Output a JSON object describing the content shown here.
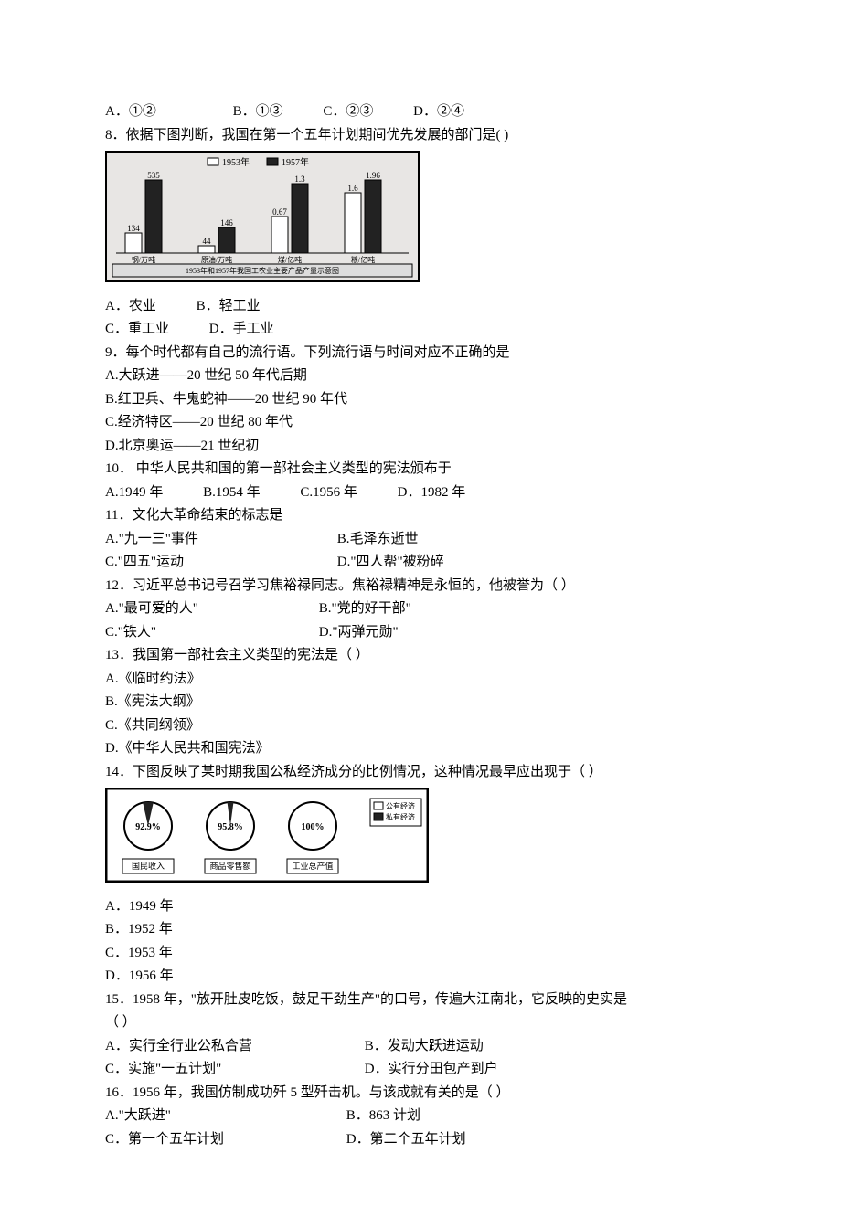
{
  "q7_opts": {
    "a": "A．①②",
    "b": "B．①③",
    "c": "C．②③",
    "d": "D．②④"
  },
  "q8": {
    "stem": "8．依据下图判断，我国在第一个五年计划期间优先发展的部门是(  )",
    "chart": {
      "legend_1953": "1953年",
      "legend_1957": "1957年",
      "bar_pairs": [
        {
          "v1953": 134,
          "v1957": 535,
          "label": "钢/万吨"
        },
        {
          "v1953": 44,
          "v1957": 146,
          "label": "原油/万吨"
        },
        {
          "v1953": 0.67,
          "v1957": 1.3,
          "label": "煤/亿吨"
        },
        {
          "v1953": 1.6,
          "v1957": 1.96,
          "label": "粮/亿吨"
        }
      ],
      "caption": "1953年和1957年我国工农业主要产品产量示意图",
      "color_1953": "#ffffff",
      "color_1957": "#222222",
      "border": "#000000",
      "bg": "#e8e6e4"
    },
    "opt_a": "A．农业",
    "opt_b": "B．轻工业",
    "opt_c": "C．重工业",
    "opt_d": "D．手工业"
  },
  "q9": {
    "stem": "9．每个时代都有自己的流行语。下列流行语与时间对应不正确的是",
    "a": "A.大跃进——20 世纪 50 年代后期",
    "b": "B.红卫兵、牛鬼蛇神——20 世纪 90 年代",
    "c": "C.经济特区——20 世纪 80 年代",
    "d": "D.北京奥运——21 世纪初"
  },
  "q10": {
    "stem": "10．  中华人民共和国的第一部社会主义类型的宪法颁布于",
    "a": "A.1949 年",
    "b": "B.1954 年",
    "c": "C.1956 年",
    "d": "D．1982 年"
  },
  "q11": {
    "stem": "11．文化大革命结束的标志是",
    "a": "A.\"九一三\"事件",
    "b": "B.毛泽东逝世",
    "c": "C.\"四五\"运动",
    "d": "D.\"四人帮\"被粉碎"
  },
  "q12": {
    "stem": "12．习近平总书记号召学习焦裕禄同志。焦裕禄精神是永恒的，他被誉为（     ）",
    "a": "A.\"最可爱的人\"",
    "b": "B.\"党的好干部\"",
    "c": "C.\"铁人\"",
    "d": "D.\"两弹元勋\""
  },
  "q13": {
    "stem": "13．我国第一部社会主义类型的宪法是（     ）",
    "a": "A.《临时约法》",
    "b": "B.《宪法大纲》",
    "c": "C.《共同纲领》",
    "d": "D.《中华人民共和国宪法》"
  },
  "q14": {
    "stem": "14．下图反映了某时期我国公私经济成分的比例情况，这种情况最早应出现于（     ）",
    "chart": {
      "pies": [
        {
          "pct": "92.9%",
          "label": "国民收入",
          "priv": 7.1
        },
        {
          "pct": "95.8%",
          "label": "商品零售额",
          "priv": 4.2
        },
        {
          "pct": "100%",
          "label": "工业总产值",
          "priv": 0
        }
      ],
      "legend_pub": "公有经济",
      "legend_priv": "私有经济",
      "color_pub": "#ffffff",
      "color_priv": "#222222",
      "border": "#000000"
    },
    "a": "A．1949 年",
    "b": "B．1952 年",
    "c": "C．1953 年",
    "d": "D．1956 年"
  },
  "q15": {
    "stem": "15．1958 年，\"放开肚皮吃饭，鼓足干劲生产\"的口号，传遍大江南北，它反映的史实是",
    "paren": "（     ）",
    "a": "A．实行全行业公私合营",
    "b": "B．发动大跃进运动",
    "c": "C．实施\"一五计划\"",
    "d": "D．实行分田包产到户"
  },
  "q16": {
    "stem": "16．1956 年，我国仿制成功歼 5 型歼击机。与该成就有关的是（     ）",
    "a": "A.\"大跃进\"",
    "b": "B．863 计划",
    "c": "C．第一个五年计划",
    "d": "D．第二个五年计划"
  }
}
